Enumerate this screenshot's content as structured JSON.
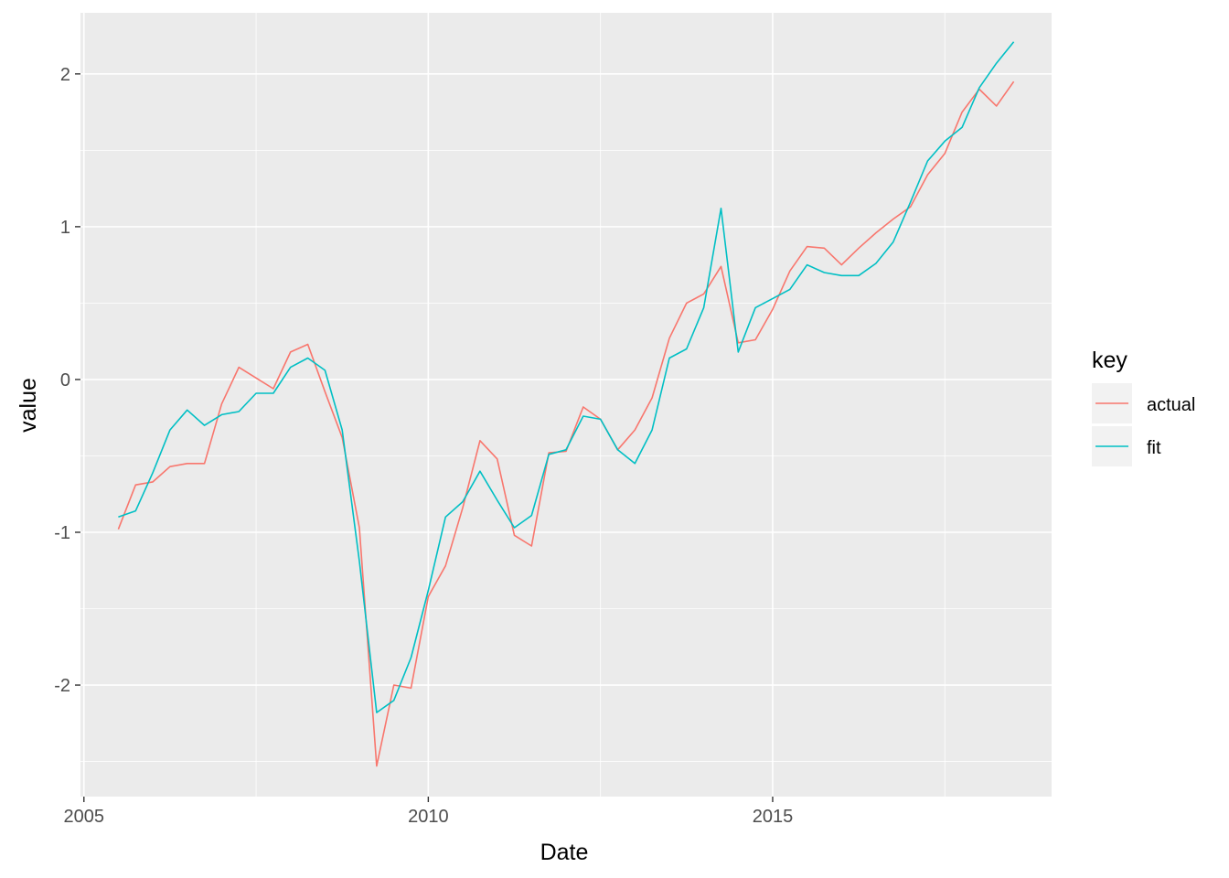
{
  "chart_data": {
    "type": "line",
    "xlabel": "Date",
    "ylabel": "value",
    "xlim": [
      2004.95,
      2019.05
    ],
    "ylim": [
      -2.73,
      2.4
    ],
    "x_ticks": [
      2005,
      2010,
      2015
    ],
    "x_tick_labels": [
      "2005",
      "2010",
      "2015"
    ],
    "y_ticks": [
      -2,
      -1,
      0,
      1,
      2
    ],
    "y_tick_labels": [
      "-2",
      "-1",
      "0",
      "1",
      "2"
    ],
    "grid": true,
    "legend": {
      "title": "key",
      "placement": "right"
    },
    "x": [
      2005.5,
      2005.75,
      2006.0,
      2006.25,
      2006.5,
      2006.75,
      2007.0,
      2007.25,
      2007.5,
      2007.75,
      2008.0,
      2008.25,
      2008.5,
      2008.75,
      2009.0,
      2009.25,
      2009.5,
      2009.75,
      2010.0,
      2010.25,
      2010.5,
      2010.75,
      2011.0,
      2011.25,
      2011.5,
      2011.75,
      2012.0,
      2012.25,
      2012.5,
      2012.75,
      2013.0,
      2013.25,
      2013.5,
      2013.75,
      2014.0,
      2014.25,
      2014.5,
      2014.75,
      2015.0,
      2015.25,
      2015.5,
      2015.75,
      2016.0,
      2016.25,
      2016.5,
      2016.75,
      2017.0,
      2017.25,
      2017.5,
      2017.75,
      2018.0,
      2018.25,
      2018.5
    ],
    "series": [
      {
        "name": "actual",
        "color": "#F8766D",
        "values": [
          -0.98,
          -0.69,
          -0.67,
          -0.57,
          -0.55,
          -0.55,
          -0.16,
          0.08,
          0.01,
          -0.06,
          0.18,
          0.23,
          -0.08,
          -0.38,
          -0.97,
          -2.53,
          -2.0,
          -2.02,
          -1.42,
          -1.22,
          -0.84,
          -0.4,
          -0.52,
          -1.02,
          -1.09,
          -0.48,
          -0.47,
          -0.18,
          -0.26,
          -0.46,
          -0.33,
          -0.12,
          0.27,
          0.5,
          0.56,
          0.74,
          0.24,
          0.26,
          0.46,
          0.71,
          0.87,
          0.86,
          0.75,
          0.86,
          0.96,
          1.05,
          1.13,
          1.34,
          1.48,
          1.75,
          1.9,
          1.79,
          1.95
        ]
      },
      {
        "name": "fit",
        "color": "#00BFC4",
        "values": [
          -0.9,
          -0.86,
          -0.61,
          -0.33,
          -0.2,
          -0.3,
          -0.23,
          -0.21,
          -0.09,
          -0.09,
          0.08,
          0.14,
          0.06,
          -0.33,
          -1.19,
          -2.18,
          -2.1,
          -1.82,
          -1.38,
          -0.9,
          -0.8,
          -0.6,
          -0.79,
          -0.97,
          -0.89,
          -0.49,
          -0.46,
          -0.24,
          -0.26,
          -0.46,
          -0.55,
          -0.33,
          0.14,
          0.2,
          0.47,
          1.12,
          0.18,
          0.47,
          0.53,
          0.59,
          0.75,
          0.7,
          0.68,
          0.68,
          0.76,
          0.9,
          1.16,
          1.43,
          1.56,
          1.65,
          1.91,
          2.07,
          2.21
        ]
      }
    ]
  }
}
